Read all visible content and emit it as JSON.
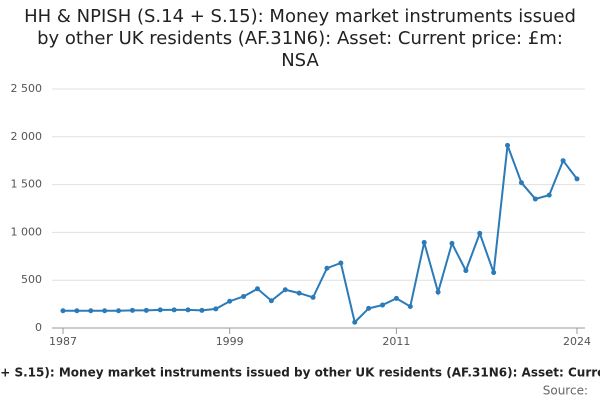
{
  "chart_data": {
    "type": "line",
    "title": "HH & NPISH (S.14 + S.15): Money market instruments issued by other UK residents (AF.31N6): Asset: Current price: £m: NSA",
    "source_label": "Source:",
    "x": [
      1987,
      1988,
      1989,
      1990,
      1991,
      1992,
      1993,
      1994,
      1995,
      1996,
      1997,
      1998,
      1999,
      2000,
      2001,
      2002,
      2003,
      2004,
      2005,
      2006,
      2007,
      2008,
      2009,
      2010,
      2011,
      2012,
      2013,
      2014,
      2015,
      2016,
      2017,
      2018,
      2019,
      2020,
      2021,
      2022,
      2023,
      2024
    ],
    "values": [
      180,
      180,
      180,
      180,
      180,
      185,
      185,
      190,
      190,
      190,
      185,
      200,
      280,
      330,
      410,
      285,
      400,
      365,
      320,
      625,
      680,
      60,
      205,
      240,
      310,
      225,
      895,
      375,
      885,
      600,
      990,
      580,
      1910,
      1520,
      1350,
      1390,
      1750,
      1560
    ],
    "color": "#2b7bb9",
    "xlim": [
      1987,
      2024
    ],
    "xticks": [
      1987,
      1999,
      2011,
      2024
    ],
    "ylim": [
      0,
      2500
    ],
    "yticks": [
      0,
      500,
      {
        "value": 1000,
        "label": "1 000"
      },
      {
        "value": 1500,
        "label": "1 500"
      },
      {
        "value": 2000,
        "label": "2 000"
      },
      {
        "value": 2500,
        "label": "2 500"
      }
    ],
    "grid": true
  }
}
